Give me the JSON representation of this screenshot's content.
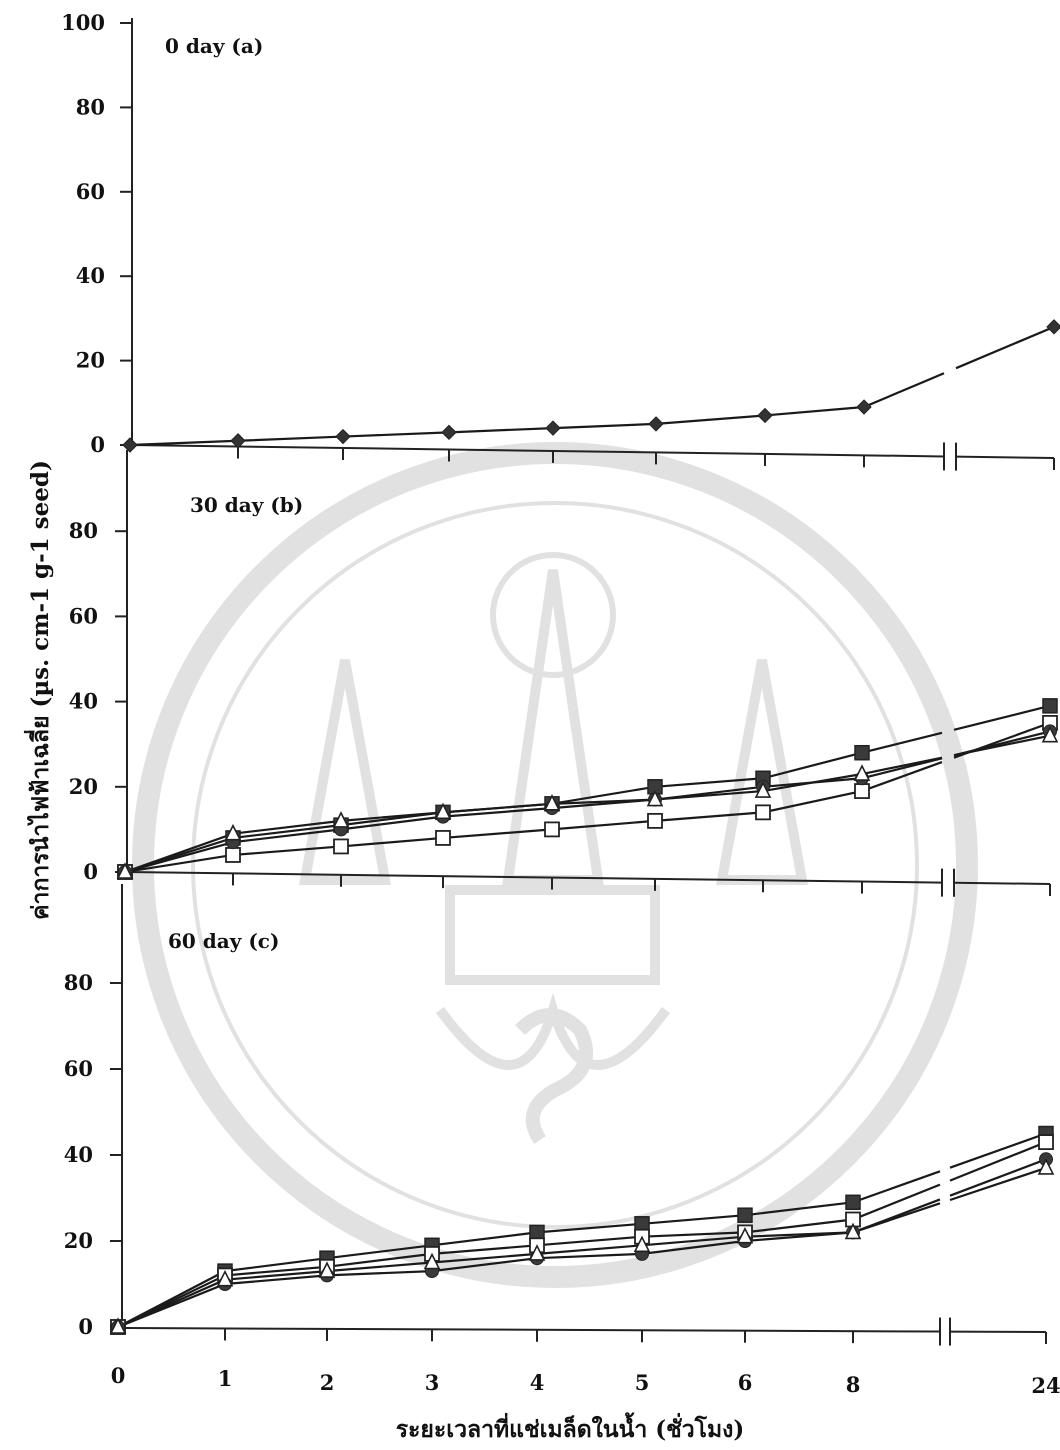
{
  "chart_data": {
    "type": "line",
    "y_label": "ค่าการนำไฟฟ้าเฉลี่ย (µs. cm-1 g-1 seed)",
    "x_label": "ระยะเวลาที่แช่เมล็ดในน้ำ (ชั่วโมง)",
    "x_categories": [
      "0",
      "1",
      "2",
      "3",
      "4",
      "5",
      "6",
      "8",
      "24"
    ],
    "panels": [
      {
        "label": "0 day (a)",
        "yticks": [
          "100",
          "80",
          "60",
          "40",
          "20",
          "0"
        ],
        "ylim": [
          0,
          100
        ],
        "series": [
          {
            "marker": "diamond",
            "values": [
              0,
              1,
              2,
              3,
              4,
              5,
              7,
              9,
              28
            ]
          }
        ]
      },
      {
        "label": "30 day (b)",
        "yticks": [
          "80",
          "60",
          "40",
          "20",
          "0"
        ],
        "ylim": [
          0,
          90
        ],
        "series": [
          {
            "marker": "square-filled",
            "values": [
              0,
              8,
              11,
              14,
              16,
              20,
              22,
              28,
              39
            ]
          },
          {
            "marker": "square-open",
            "values": [
              0,
              4,
              6,
              8,
              10,
              12,
              14,
              19,
              35
            ]
          },
          {
            "marker": "circle",
            "values": [
              0,
              7,
              10,
              13,
              15,
              17,
              20,
              22,
              33
            ]
          },
          {
            "marker": "triangle",
            "values": [
              0,
              9,
              12,
              14,
              16,
              17,
              19,
              23,
              32
            ]
          }
        ]
      },
      {
        "label": "60 day (c)",
        "yticks": [
          "80",
          "60",
          "40",
          "20",
          "0"
        ],
        "ylim": [
          0,
          90
        ],
        "series": [
          {
            "marker": "square-filled",
            "values": [
              0,
              13,
              16,
              19,
              22,
              24,
              26,
              29,
              45
            ]
          },
          {
            "marker": "square-open",
            "values": [
              0,
              12,
              14,
              17,
              19,
              21,
              22,
              25,
              43
            ]
          },
          {
            "marker": "circle",
            "values": [
              0,
              10,
              12,
              13,
              16,
              17,
              20,
              22,
              39
            ]
          },
          {
            "marker": "triangle",
            "values": [
              0,
              11,
              13,
              15,
              17,
              19,
              21,
              22,
              37
            ]
          }
        ]
      }
    ]
  }
}
